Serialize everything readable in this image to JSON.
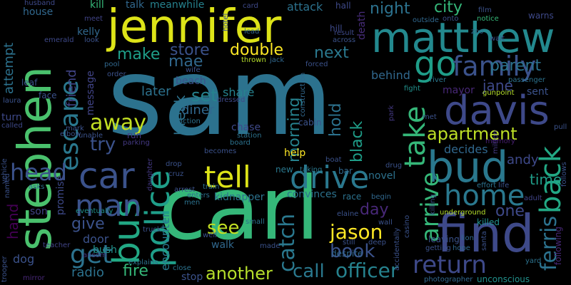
{
  "words": [
    {
      "text": "sam",
      "color": "#2c728e"
    },
    {
      "text": "carl",
      "color": "#35b779"
    },
    {
      "text": "jennifer",
      "color": "#dde318"
    },
    {
      "text": "stephen",
      "color": "#4ac16d"
    },
    {
      "text": "matthew",
      "color": "#23898e"
    },
    {
      "text": "find",
      "color": "#3e4989"
    },
    {
      "text": "bud",
      "color": "#2a788e"
    },
    {
      "text": "davis",
      "color": "#3e4989"
    },
    {
      "text": "bus",
      "color": "#22a884"
    },
    {
      "text": "police",
      "color": "#1f9e89"
    },
    {
      "text": "car",
      "color": "#3b528b"
    },
    {
      "text": "drive",
      "color": "#2a788e"
    },
    {
      "text": "man",
      "color": "#3b528b"
    },
    {
      "text": "tell",
      "color": "#dde318"
    },
    {
      "text": "go",
      "color": "#1f9e89"
    },
    {
      "text": "home",
      "color": "#2a788e"
    },
    {
      "text": "back",
      "color": "#22a884"
    },
    {
      "text": "take",
      "color": "#35b779"
    },
    {
      "text": "family",
      "color": "#3b528b"
    },
    {
      "text": "escape",
      "color": "#2a788e"
    },
    {
      "text": "return",
      "color": "#3e4989"
    },
    {
      "text": "get",
      "color": "#2c728e"
    },
    {
      "text": "apartment",
      "color": "#bddf26"
    },
    {
      "text": "arrive",
      "color": "#35b779"
    },
    {
      "text": "head",
      "color": "#3b528b"
    },
    {
      "text": "ferris",
      "color": "#2c728e"
    },
    {
      "text": "jason",
      "color": "#fde725"
    },
    {
      "text": "away",
      "color": "#c2df23"
    },
    {
      "text": "catch",
      "color": "#2a788e"
    },
    {
      "text": "book",
      "color": "#3b528b"
    },
    {
      "text": "see",
      "color": "#c2df23"
    },
    {
      "text": "another",
      "color": "#b5de2b"
    },
    {
      "text": "call",
      "color": "#2a788e"
    },
    {
      "text": "officer",
      "color": "#26828e"
    },
    {
      "text": "night",
      "color": "#2c728e"
    },
    {
      "text": "city",
      "color": "#35b779"
    },
    {
      "text": "parent",
      "color": "#2c728e"
    },
    {
      "text": "double",
      "color": "#fde725"
    },
    {
      "text": "store",
      "color": "#3b528b"
    },
    {
      "text": "make",
      "color": "#1f9e89"
    },
    {
      "text": "mae",
      "color": "#31688e"
    },
    {
      "text": "next",
      "color": "#2a788e"
    },
    {
      "text": "try",
      "color": "#3b528b"
    },
    {
      "text": "set",
      "color": "#26828e"
    },
    {
      "text": "fire",
      "color": "#35b779"
    },
    {
      "text": "hold",
      "color": "#2c728e"
    },
    {
      "text": "morning",
      "color": "#26828e"
    },
    {
      "text": "black",
      "color": "#1f9e89"
    },
    {
      "text": "friend",
      "color": "#414487"
    },
    {
      "text": "message",
      "color": "#414487"
    },
    {
      "text": "attempt",
      "color": "#2c728e"
    },
    {
      "text": "give",
      "color": "#3b528b"
    },
    {
      "text": "hand",
      "color": "#440154"
    },
    {
      "text": "break",
      "color": "#2c728e"
    },
    {
      "text": "encounter",
      "color": "#2a788e"
    },
    {
      "text": "day",
      "color": "#482878"
    },
    {
      "text": "one",
      "color": "#3e4989"
    },
    {
      "text": "time",
      "color": "#1f9e89"
    },
    {
      "text": "andy",
      "color": "#3e4989"
    },
    {
      "text": "jane",
      "color": "#3e4989"
    },
    {
      "text": "decides",
      "color": "#31688e"
    },
    {
      "text": "later",
      "color": "#2c728e"
    },
    {
      "text": "share",
      "color": "#26828e"
    },
    {
      "text": "diner",
      "color": "#31688e"
    },
    {
      "text": "behind",
      "color": "#31688e"
    },
    {
      "text": "radio",
      "color": "#2c728e"
    },
    {
      "text": "door",
      "color": "#3b528b"
    },
    {
      "text": "bush",
      "color": "#21918c"
    },
    {
      "text": "walk",
      "color": "#31688e"
    },
    {
      "text": "help",
      "color": "#fde725"
    },
    {
      "text": "kidnapper",
      "color": "#2c728e"
    },
    {
      "text": "convinces",
      "color": "#2c728e"
    },
    {
      "text": "stop",
      "color": "#3b528b"
    },
    {
      "text": "house",
      "color": "#31688e"
    },
    {
      "text": "attack",
      "color": "#2c728e"
    },
    {
      "text": "kelly",
      "color": "#31688e"
    },
    {
      "text": "talk",
      "color": "#31688e"
    },
    {
      "text": "meanwhile",
      "color": "#26828e"
    },
    {
      "text": "kill",
      "color": "#35b779"
    },
    {
      "text": "husband",
      "color": "#3e4989"
    },
    {
      "text": "sent",
      "color": "#3b528b"
    },
    {
      "text": "mayor",
      "color": "#482878"
    },
    {
      "text": "beach",
      "color": "#3b528b"
    },
    {
      "text": "killed",
      "color": "#21918c"
    },
    {
      "text": "following",
      "color": "#482878"
    },
    {
      "text": "follows",
      "color": "#3b528b"
    },
    {
      "text": "promise",
      "color": "#3e4989"
    },
    {
      "text": "dog",
      "color": "#3b528b"
    },
    {
      "text": "son",
      "color": "#414487"
    },
    {
      "text": "eventually",
      "color": "#21918c"
    },
    {
      "text": "mirror",
      "color": "#482878"
    },
    {
      "text": "trooper",
      "color": "#3b528b"
    },
    {
      "text": "unconscious",
      "color": "#21918c"
    },
    {
      "text": "photographer",
      "color": "#31688e"
    },
    {
      "text": "death",
      "color": "#472c7a"
    },
    {
      "text": "hill",
      "color": "#3e4989"
    },
    {
      "text": "hall",
      "color": "#3e4989"
    },
    {
      "text": "card",
      "color": "#3e4989"
    },
    {
      "text": "lead",
      "color": "#31688e"
    },
    {
      "text": "zoo",
      "color": "#31688e"
    },
    {
      "text": "notice",
      "color": "#35b779"
    },
    {
      "text": "warns",
      "color": "#3e4989"
    },
    {
      "text": "passenger",
      "color": "#2c728e"
    },
    {
      "text": "gunpoint",
      "color": "#b5de2b"
    },
    {
      "text": "river",
      "color": "#2a788e"
    },
    {
      "text": "fight",
      "color": "#21918c"
    },
    {
      "text": "pull",
      "color": "#3b528b"
    },
    {
      "text": "memory",
      "color": "#481f70"
    },
    {
      "text": "effort",
      "color": "#2c728e"
    },
    {
      "text": "life",
      "color": "#3b528b"
    },
    {
      "text": "adult",
      "color": "#414487"
    },
    {
      "text": "lion",
      "color": "#31688e"
    },
    {
      "text": "hope",
      "color": "#31688e"
    },
    {
      "text": "yard",
      "color": "#2c728e"
    },
    {
      "text": "getting",
      "color": "#3b528b"
    },
    {
      "text": "underground",
      "color": "#b5de2b"
    },
    {
      "text": "leaving",
      "color": "#3b528b"
    },
    {
      "text": "race",
      "color": "#2c728e"
    },
    {
      "text": "begin",
      "color": "#31688e"
    },
    {
      "text": "drug",
      "color": "#3b528b"
    },
    {
      "text": "bar",
      "color": "#31688e"
    },
    {
      "text": "taking",
      "color": "#2a788e"
    },
    {
      "text": "novel",
      "color": "#2c728e"
    },
    {
      "text": "boat",
      "color": "#3b528b"
    },
    {
      "text": "wall",
      "color": "#3b528b"
    },
    {
      "text": "deep",
      "color": "#3b528b"
    },
    {
      "text": "still",
      "color": "#3b528b"
    },
    {
      "text": "despite",
      "color": "#31688e"
    },
    {
      "text": "new",
      "color": "#2a788e"
    },
    {
      "text": "train",
      "color": "#2c728e"
    },
    {
      "text": "enters",
      "color": "#2c728e"
    },
    {
      "text": "men",
      "color": "#2c728e"
    },
    {
      "text": "small",
      "color": "#2c728e"
    },
    {
      "text": "made",
      "color": "#3b528b"
    },
    {
      "text": "close",
      "color": "#2c728e"
    },
    {
      "text": "explains",
      "color": "#2c728e"
    },
    {
      "text": "arrest",
      "color": "#3b528b"
    },
    {
      "text": "chase",
      "color": "#3e4989"
    },
    {
      "text": "station",
      "color": "#2c728e"
    },
    {
      "text": "board",
      "color": "#2c728e"
    },
    {
      "text": "action",
      "color": "#2c728e"
    },
    {
      "text": "run",
      "color": "#443983"
    },
    {
      "text": "parking",
      "color": "#443983"
    },
    {
      "text": "drop",
      "color": "#3b528b"
    },
    {
      "text": "asks",
      "color": "#2c728e"
    },
    {
      "text": "teacher",
      "color": "#414487"
    },
    {
      "text": "called",
      "color": "#3e4989"
    },
    {
      "text": "turn",
      "color": "#3e4989"
    },
    {
      "text": "face",
      "color": "#3b528b"
    },
    {
      "text": "leaf",
      "color": "#3b528b"
    },
    {
      "text": "laura",
      "color": "#3b528b"
    },
    {
      "text": "pool",
      "color": "#31688e"
    },
    {
      "text": "look",
      "color": "#3b528b"
    },
    {
      "text": "meet",
      "color": "#414487"
    },
    {
      "text": "emerald",
      "color": "#3e4989"
    },
    {
      "text": "wife",
      "color": "#3b528b"
    },
    {
      "text": "dressed",
      "color": "#3e4989"
    },
    {
      "text": "thrown",
      "color": "#b5de2b"
    },
    {
      "text": "jack",
      "color": "#31688e"
    },
    {
      "text": "forced",
      "color": "#3b528b"
    },
    {
      "text": "cabin",
      "color": "#3b528b"
    },
    {
      "text": "result",
      "color": "#3e4989"
    },
    {
      "text": "across",
      "color": "#3b528b"
    },
    {
      "text": "outside",
      "color": "#31688e"
    },
    {
      "text": "onto",
      "color": "#3b528b"
    },
    {
      "text": "wait",
      "color": "#3b528b"
    },
    {
      "text": "film",
      "color": "#3b528b"
    },
    {
      "text": "construction",
      "color": "#31688e"
    },
    {
      "text": "casino",
      "color": "#3b528b"
    },
    {
      "text": "accidentally",
      "color": "#3b528b"
    },
    {
      "text": "ansom",
      "color": "#443983"
    },
    {
      "text": "elaine",
      "color": "#3b528b"
    },
    {
      "text": "vehicle",
      "color": "#3b528b"
    },
    {
      "text": "mark",
      "color": "#3b528b"
    },
    {
      "text": "unable",
      "color": "#3b528b"
    },
    {
      "text": "elbow",
      "color": "#3b528b"
    },
    {
      "text": "order",
      "color": "#3b528b"
    },
    {
      "text": "becomes",
      "color": "#3b528b"
    },
    {
      "text": "named",
      "color": "#3b528b"
    },
    {
      "text": "daughter",
      "color": "#443983"
    },
    {
      "text": "park",
      "color": "#443983"
    },
    {
      "text": "cruz",
      "color": "#3b528b"
    },
    {
      "text": "truck",
      "color": "#3b528b"
    },
    {
      "text": "santa",
      "color": "#3b528b"
    },
    {
      "text": "killing",
      "color": "#3b528b"
    },
    {
      "text": "million",
      "color": "#443983"
    },
    {
      "text": "hotel",
      "color": "#3b528b"
    },
    {
      "text": "well",
      "color": "#3b528b"
    },
    {
      "text": "met",
      "color": "#3b528b"
    }
  ]
}
